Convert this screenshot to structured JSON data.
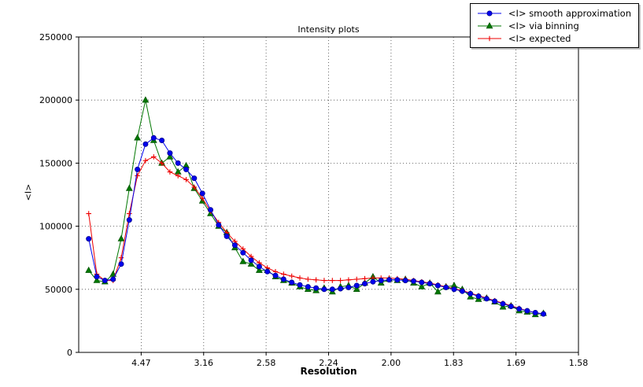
{
  "chart_data": {
    "type": "line",
    "title": "Intensity plots",
    "xlabel": "Resolution",
    "ylabel": "<I>",
    "grid": "dotted",
    "legend_position": "top-right",
    "xlim": [
      0,
      0.4
    ],
    "ylim": [
      0,
      250000
    ],
    "x_axis_note": "x positions are 1/d^2; tick labels are d-spacing (Angstrom)",
    "x_tick_positions": [
      0.05,
      0.1,
      0.15,
      0.2,
      0.25,
      0.3,
      0.35,
      0.4
    ],
    "x_tick_labels": [
      "4.47",
      "3.16",
      "2.58",
      "2.24",
      "2.00",
      "1.83",
      "1.69",
      "1.58"
    ],
    "y_tick_positions": [
      0,
      50000,
      100000,
      150000,
      200000,
      250000
    ],
    "y_tick_labels": [
      "0",
      "50000",
      "100000",
      "150000",
      "200000",
      "250000"
    ],
    "x": [
      0.008,
      0.0145,
      0.021,
      0.0275,
      0.034,
      0.0405,
      0.047,
      0.0535,
      0.06,
      0.0665,
      0.073,
      0.0795,
      0.086,
      0.0925,
      0.099,
      0.1055,
      0.112,
      0.1185,
      0.125,
      0.1315,
      0.138,
      0.1445,
      0.151,
      0.1575,
      0.164,
      0.1705,
      0.177,
      0.1835,
      0.19,
      0.1965,
      0.203,
      0.2095,
      0.216,
      0.2225,
      0.229,
      0.2355,
      0.242,
      0.2485,
      0.255,
      0.2615,
      0.268,
      0.2745,
      0.281,
      0.2875,
      0.294,
      0.3005,
      0.307,
      0.3135,
      0.32,
      0.3265,
      0.333,
      0.3395,
      0.346,
      0.3525,
      0.359,
      0.3655,
      0.372
    ],
    "series": [
      {
        "name": "<I> smooth approximation",
        "color": "#0000ee",
        "edge": "#00008b",
        "marker": "circle",
        "values": [
          90000,
          60000,
          57000,
          58000,
          70000,
          105000,
          145000,
          165000,
          170000,
          168000,
          158000,
          150000,
          145000,
          138000,
          126000,
          113000,
          101000,
          92000,
          85000,
          79000,
          73000,
          68000,
          64000,
          61000,
          58000,
          55500,
          53500,
          52000,
          51000,
          50000,
          50000,
          50500,
          51500,
          53000,
          54500,
          56000,
          57000,
          57500,
          57500,
          57000,
          56500,
          55500,
          54500,
          53000,
          51500,
          50000,
          48500,
          46500,
          44500,
          42500,
          40500,
          38500,
          36500,
          34500,
          33000,
          31500,
          30500
        ]
      },
      {
        "name": "<I> via binning",
        "color": "#007700",
        "edge": "#004d00",
        "marker": "triangle",
        "values": [
          65000,
          57000,
          56000,
          62000,
          90000,
          130000,
          170000,
          200000,
          168000,
          150000,
          155000,
          143000,
          148000,
          130000,
          120000,
          110000,
          100000,
          95000,
          83000,
          72000,
          70000,
          65000,
          65000,
          60000,
          57000,
          55000,
          52000,
          50000,
          49000,
          51000,
          48000,
          52000,
          53000,
          50000,
          55000,
          60000,
          55000,
          58000,
          57000,
          58000,
          55000,
          52000,
          55000,
          48000,
          52000,
          53000,
          50000,
          44000,
          42000,
          43000,
          40000,
          36000,
          37000,
          33000,
          32000,
          30000,
          31000
        ]
      },
      {
        "name": "<I> expected",
        "color": "#ee0000",
        "edge": "#ee0000",
        "marker": "plus",
        "values": [
          110000,
          62000,
          57000,
          57000,
          75000,
          110000,
          140000,
          152000,
          155000,
          150000,
          143000,
          140000,
          137000,
          131000,
          122000,
          112000,
          103000,
          95000,
          88000,
          82000,
          76000,
          71000,
          67000,
          64000,
          62000,
          60500,
          59000,
          58000,
          57500,
          57000,
          57000,
          57000,
          57500,
          58000,
          58500,
          59000,
          59000,
          59000,
          58500,
          58000,
          57000,
          56000,
          55000,
          53500,
          52000,
          50500,
          49000,
          47000,
          45000,
          43000,
          41000,
          39000,
          37000,
          35000,
          33000,
          31500,
          30500
        ]
      }
    ]
  }
}
